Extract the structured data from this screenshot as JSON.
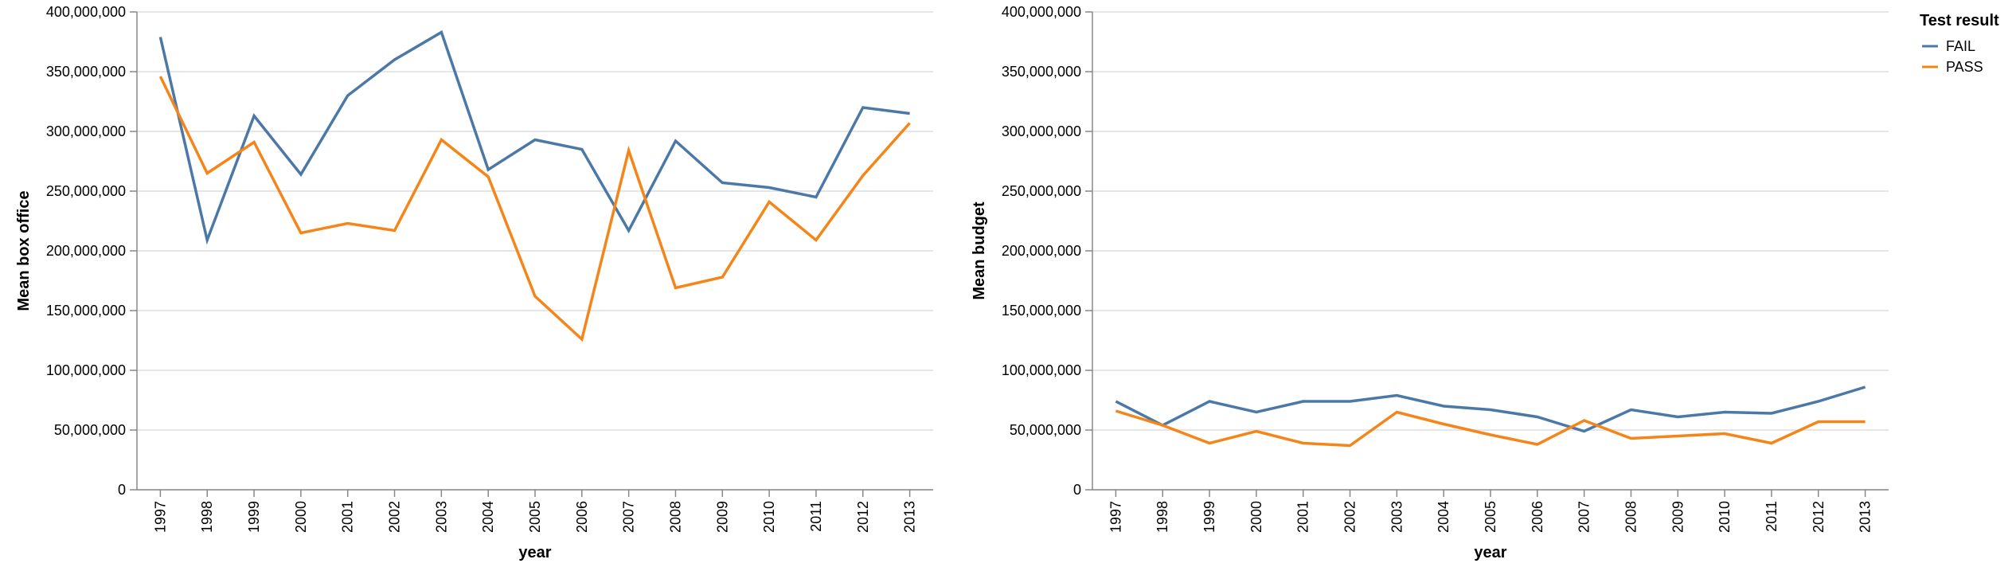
{
  "legend": {
    "title": "Test result",
    "entries": [
      {
        "label": "FAIL",
        "color": "#4c78a8"
      },
      {
        "label": "PASS",
        "color": "#f58518"
      }
    ]
  },
  "chart_data": [
    {
      "type": "line",
      "title": "",
      "xlabel": "year",
      "ylabel": "Mean box office",
      "x": [
        "1997",
        "1998",
        "1999",
        "2000",
        "2001",
        "2002",
        "2003",
        "2004",
        "2005",
        "2006",
        "2007",
        "2008",
        "2009",
        "2010",
        "2011",
        "2012",
        "2013"
      ],
      "ylim": [
        0,
        400000000
      ],
      "yticks": [
        0,
        50000000,
        100000000,
        150000000,
        200000000,
        250000000,
        300000000,
        350000000,
        400000000
      ],
      "ytick_labels": [
        "0",
        "50,000,000",
        "100,000,000",
        "150,000,000",
        "200,000,000",
        "250,000,000",
        "300,000,000",
        "350,000,000",
        "400,000,000"
      ],
      "grid": true,
      "series": [
        {
          "name": "FAIL",
          "color": "#4c78a8",
          "values": [
            379000000,
            209000000,
            313000000,
            264000000,
            330000000,
            360000000,
            383000000,
            268000000,
            293000000,
            285000000,
            217000000,
            292000000,
            257000000,
            253000000,
            245000000,
            320000000,
            315000000
          ]
        },
        {
          "name": "PASS",
          "color": "#f58518",
          "values": [
            346000000,
            265000000,
            291000000,
            215000000,
            223000000,
            217000000,
            293000000,
            262000000,
            162000000,
            126000000,
            284000000,
            169000000,
            178000000,
            241000000,
            209000000,
            263000000,
            307000000
          ]
        }
      ]
    },
    {
      "type": "line",
      "title": "",
      "xlabel": "year",
      "ylabel": "Mean budget",
      "x": [
        "1997",
        "1998",
        "1999",
        "2000",
        "2001",
        "2002",
        "2003",
        "2004",
        "2005",
        "2006",
        "2007",
        "2008",
        "2009",
        "2010",
        "2011",
        "2012",
        "2013"
      ],
      "ylim": [
        0,
        400000000
      ],
      "yticks": [
        0,
        50000000,
        100000000,
        150000000,
        200000000,
        250000000,
        300000000,
        350000000,
        400000000
      ],
      "ytick_labels": [
        "0",
        "50,000,000",
        "100,000,000",
        "150,000,000",
        "200,000,000",
        "250,000,000",
        "300,000,000",
        "350,000,000",
        "400,000,000"
      ],
      "grid": true,
      "series": [
        {
          "name": "FAIL",
          "color": "#4c78a8",
          "values": [
            74000000,
            54000000,
            74000000,
            65000000,
            74000000,
            74000000,
            79000000,
            70000000,
            67000000,
            61000000,
            49000000,
            67000000,
            61000000,
            65000000,
            64000000,
            74000000,
            86000000
          ]
        },
        {
          "name": "PASS",
          "color": "#f58518",
          "values": [
            66000000,
            54000000,
            39000000,
            49000000,
            39000000,
            37000000,
            65000000,
            55000000,
            46000000,
            38000000,
            58000000,
            43000000,
            45000000,
            47000000,
            39000000,
            57000000,
            57000000
          ]
        }
      ]
    }
  ]
}
